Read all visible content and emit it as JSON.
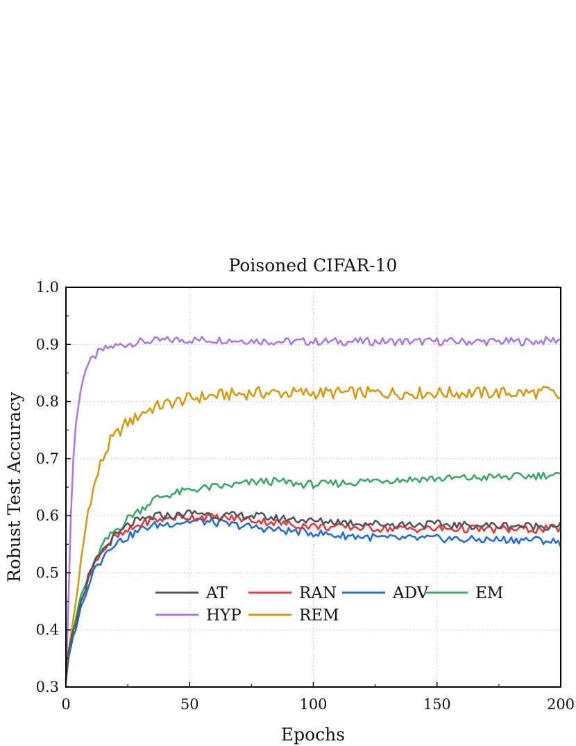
{
  "chart_data": {
    "type": "line",
    "title": "Poisoned CIFAR-10",
    "xlabel": "Epochs",
    "ylabel": "Robust Test Accuracy",
    "xlim": [
      0,
      200
    ],
    "ylim": [
      0.3,
      1.0
    ],
    "xticks": [
      0,
      50,
      100,
      150,
      200
    ],
    "yticks": [
      0.3,
      0.4,
      0.5,
      0.6,
      0.7,
      0.8,
      0.9,
      1.0
    ],
    "x_tick_labels": [
      "0",
      "50",
      "100",
      "150",
      "200"
    ],
    "y_tick_labels": [
      "0.3",
      "0.4",
      "0.5",
      "0.6",
      "0.7",
      "0.8",
      "0.9",
      "1.0"
    ],
    "grid": true,
    "legend_position": "lower-center",
    "colors": {
      "AT": "#555555",
      "RAN": "#e8383d",
      "ADV": "#1f6fd6",
      "EM": "#3aa868",
      "HYP": "#a97ae0",
      "REM": "#d49a10"
    },
    "x": [
      0,
      1,
      2,
      3,
      4,
      5,
      6,
      7,
      8,
      9,
      10,
      11,
      12,
      13,
      14,
      15,
      16,
      17,
      18,
      19,
      20,
      22,
      24,
      26,
      28,
      30,
      33,
      36,
      40,
      45,
      50,
      55,
      60,
      65,
      70,
      75,
      80,
      85,
      90,
      95,
      100,
      105,
      110,
      115,
      120,
      125,
      130,
      135,
      140,
      145,
      150,
      155,
      160,
      165,
      170,
      175,
      180,
      185,
      190,
      195,
      200
    ],
    "series": [
      {
        "name": "AT",
        "values": [
          0.31,
          0.36,
          0.38,
          0.4,
          0.41,
          0.43,
          0.45,
          0.46,
          0.47,
          0.49,
          0.5,
          0.51,
          0.52,
          0.53,
          0.535,
          0.54,
          0.545,
          0.55,
          0.555,
          0.56,
          0.565,
          0.57,
          0.58,
          0.585,
          0.59,
          0.59,
          0.595,
          0.6,
          0.6,
          0.6,
          0.605,
          0.605,
          0.6,
          0.6,
          0.6,
          0.6,
          0.598,
          0.595,
          0.595,
          0.593,
          0.59,
          0.59,
          0.59,
          0.588,
          0.587,
          0.586,
          0.585,
          0.585,
          0.585,
          0.585,
          0.585,
          0.584,
          0.583,
          0.583,
          0.583,
          0.583,
          0.583,
          0.582,
          0.582,
          0.582,
          0.585
        ]
      },
      {
        "name": "RAN",
        "values": [
          0.31,
          0.36,
          0.38,
          0.4,
          0.41,
          0.43,
          0.45,
          0.46,
          0.47,
          0.49,
          0.5,
          0.51,
          0.52,
          0.53,
          0.535,
          0.54,
          0.545,
          0.55,
          0.555,
          0.56,
          0.562,
          0.565,
          0.57,
          0.575,
          0.58,
          0.585,
          0.59,
          0.592,
          0.595,
          0.598,
          0.598,
          0.598,
          0.597,
          0.596,
          0.595,
          0.593,
          0.59,
          0.588,
          0.585,
          0.583,
          0.582,
          0.58,
          0.58,
          0.58,
          0.579,
          0.578,
          0.578,
          0.577,
          0.577,
          0.577,
          0.577,
          0.577,
          0.577,
          0.577,
          0.576,
          0.576,
          0.576,
          0.576,
          0.576,
          0.577,
          0.578
        ]
      },
      {
        "name": "ADV",
        "values": [
          0.31,
          0.35,
          0.37,
          0.39,
          0.4,
          0.42,
          0.44,
          0.45,
          0.46,
          0.48,
          0.49,
          0.5,
          0.51,
          0.52,
          0.52,
          0.53,
          0.535,
          0.54,
          0.545,
          0.55,
          0.553,
          0.556,
          0.56,
          0.565,
          0.57,
          0.575,
          0.58,
          0.583,
          0.585,
          0.588,
          0.59,
          0.59,
          0.588,
          0.585,
          0.583,
          0.58,
          0.578,
          0.575,
          0.573,
          0.572,
          0.57,
          0.568,
          0.565,
          0.565,
          0.563,
          0.562,
          0.56,
          0.56,
          0.56,
          0.56,
          0.56,
          0.56,
          0.558,
          0.558,
          0.558,
          0.558,
          0.558,
          0.558,
          0.558,
          0.556,
          0.552
        ]
      },
      {
        "name": "EM",
        "values": [
          0.31,
          0.36,
          0.38,
          0.4,
          0.42,
          0.44,
          0.46,
          0.47,
          0.48,
          0.49,
          0.5,
          0.51,
          0.52,
          0.53,
          0.54,
          0.55,
          0.555,
          0.56,
          0.565,
          0.57,
          0.575,
          0.58,
          0.59,
          0.6,
          0.605,
          0.61,
          0.62,
          0.63,
          0.635,
          0.64,
          0.645,
          0.648,
          0.65,
          0.652,
          0.655,
          0.658,
          0.66,
          0.66,
          0.658,
          0.655,
          0.655,
          0.655,
          0.657,
          0.658,
          0.66,
          0.662,
          0.663,
          0.663,
          0.664,
          0.665,
          0.665,
          0.665,
          0.666,
          0.666,
          0.667,
          0.668,
          0.668,
          0.669,
          0.67,
          0.672,
          0.67
        ]
      },
      {
        "name": "HYP",
        "values": [
          0.31,
          0.45,
          0.6,
          0.7,
          0.76,
          0.79,
          0.82,
          0.84,
          0.855,
          0.865,
          0.87,
          0.875,
          0.88,
          0.885,
          0.888,
          0.89,
          0.892,
          0.894,
          0.895,
          0.896,
          0.897,
          0.899,
          0.9,
          0.902,
          0.903,
          0.904,
          0.905,
          0.906,
          0.907,
          0.908,
          0.908,
          0.908,
          0.908,
          0.908,
          0.907,
          0.907,
          0.906,
          0.905,
          0.905,
          0.905,
          0.905,
          0.905,
          0.905,
          0.905,
          0.905,
          0.905,
          0.905,
          0.905,
          0.905,
          0.905,
          0.905,
          0.905,
          0.905,
          0.905,
          0.905,
          0.905,
          0.905,
          0.905,
          0.905,
          0.907,
          0.908
        ]
      },
      {
        "name": "REM",
        "values": [
          0.31,
          0.36,
          0.39,
          0.42,
          0.45,
          0.48,
          0.52,
          0.55,
          0.58,
          0.61,
          0.63,
          0.645,
          0.66,
          0.675,
          0.69,
          0.7,
          0.71,
          0.72,
          0.73,
          0.735,
          0.74,
          0.75,
          0.76,
          0.765,
          0.77,
          0.778,
          0.785,
          0.79,
          0.795,
          0.8,
          0.805,
          0.808,
          0.81,
          0.812,
          0.813,
          0.815,
          0.815,
          0.815,
          0.815,
          0.815,
          0.815,
          0.815,
          0.815,
          0.815,
          0.815,
          0.815,
          0.815,
          0.815,
          0.815,
          0.815,
          0.815,
          0.815,
          0.815,
          0.815,
          0.815,
          0.815,
          0.815,
          0.815,
          0.815,
          0.818,
          0.805
        ]
      }
    ],
    "legend_rows": [
      [
        "AT",
        "RAN",
        "ADV",
        "EM"
      ],
      [
        "HYP",
        "REM"
      ]
    ]
  }
}
